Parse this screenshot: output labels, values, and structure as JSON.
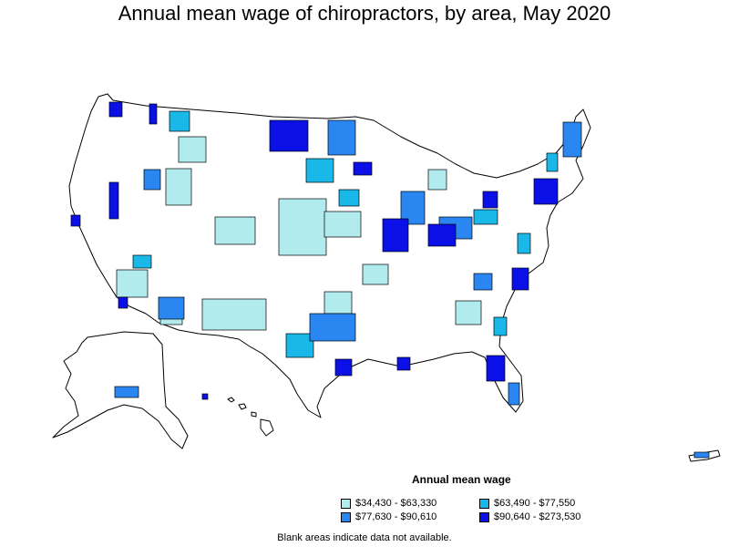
{
  "title": "Annual mean wage of chiropractors, by area, May 2020",
  "legend": {
    "title": "Annual mean wage",
    "items": [
      {
        "label": "$34,430 - $63,330",
        "color": "#b2ebee"
      },
      {
        "label": "$63,490 - $77,550",
        "color": "#1ab8e8"
      },
      {
        "label": "$77,630 - $90,610",
        "color": "#2a86f0"
      },
      {
        "label": "$90,640 - $273,530",
        "color": "#0a10e6"
      }
    ]
  },
  "footnote": "Blank areas indicate data not available.",
  "colors": {
    "no_data": "#ffffff",
    "border": "#000000"
  }
}
